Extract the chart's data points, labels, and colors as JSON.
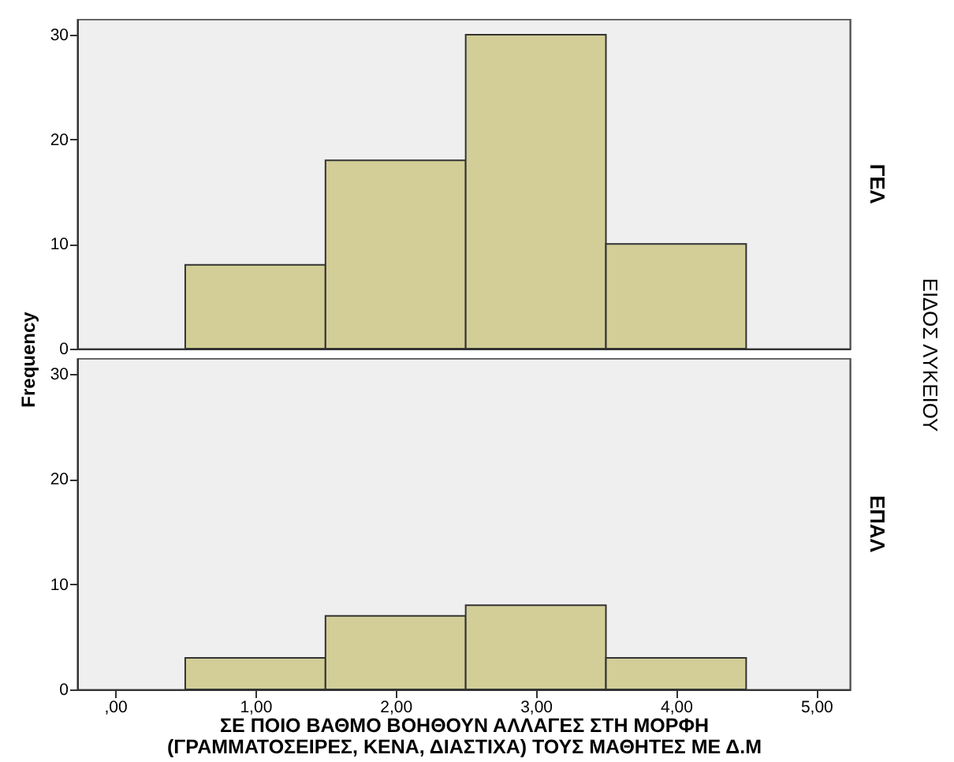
{
  "chart_data": [
    {
      "type": "histogram",
      "y2label": "ΓΕΛ",
      "ylabel": "Frequency",
      "annotations": [
        "ΕΙΔΟΣ ΛΥΚΕΙΟΥ"
      ],
      "bins": [
        0.5,
        1.5,
        2.5,
        3.5,
        4.5
      ],
      "values": [
        8,
        18,
        30,
        10
      ],
      "color": "#d3ce97",
      "xlim": [
        -0.27,
        5.24
      ],
      "ylim": [
        0,
        31.5
      ],
      "yticks": [
        0,
        10,
        20,
        30
      ],
      "tick_labels": "y"
    },
    {
      "type": "histogram",
      "y2label": "ΕΠΑΛ",
      "xlabel": "ΣΕ ΠΟΙΟ ΒΑΘΜΟ ΒΟΗΘΟΥΝ ΑΛΛΑΓΕΣ ΣΤΗ ΜΟΡΦΗ\n(ΓΡΑΜΜΑΤΟΣΕΙΡΕΣ, ΚΕΝΑ, ΔΙΑΣΤΙΧΑ) ΤΟΥΣ ΜΑΘΗΤΕΣ ΜΕ Δ.Μ",
      "bins": [
        0.5,
        1.5,
        2.5,
        3.5,
        4.5
      ],
      "values": [
        3,
        7,
        8,
        3
      ],
      "color": "#d3ce97",
      "xlim": [
        -0.27,
        5.24
      ],
      "xticks": [
        {
          "value": 0,
          "label": ",00"
        },
        {
          "value": 1,
          "label": "1,00"
        },
        {
          "value": 2,
          "label": "2,00"
        },
        {
          "value": 3,
          "label": "3,00"
        },
        {
          "value": 4,
          "label": "4,00"
        },
        {
          "value": 5,
          "label": "5,00"
        }
      ],
      "ylim": [
        0,
        31.5
      ],
      "yticks": [
        0,
        10,
        20,
        30
      ]
    }
  ]
}
